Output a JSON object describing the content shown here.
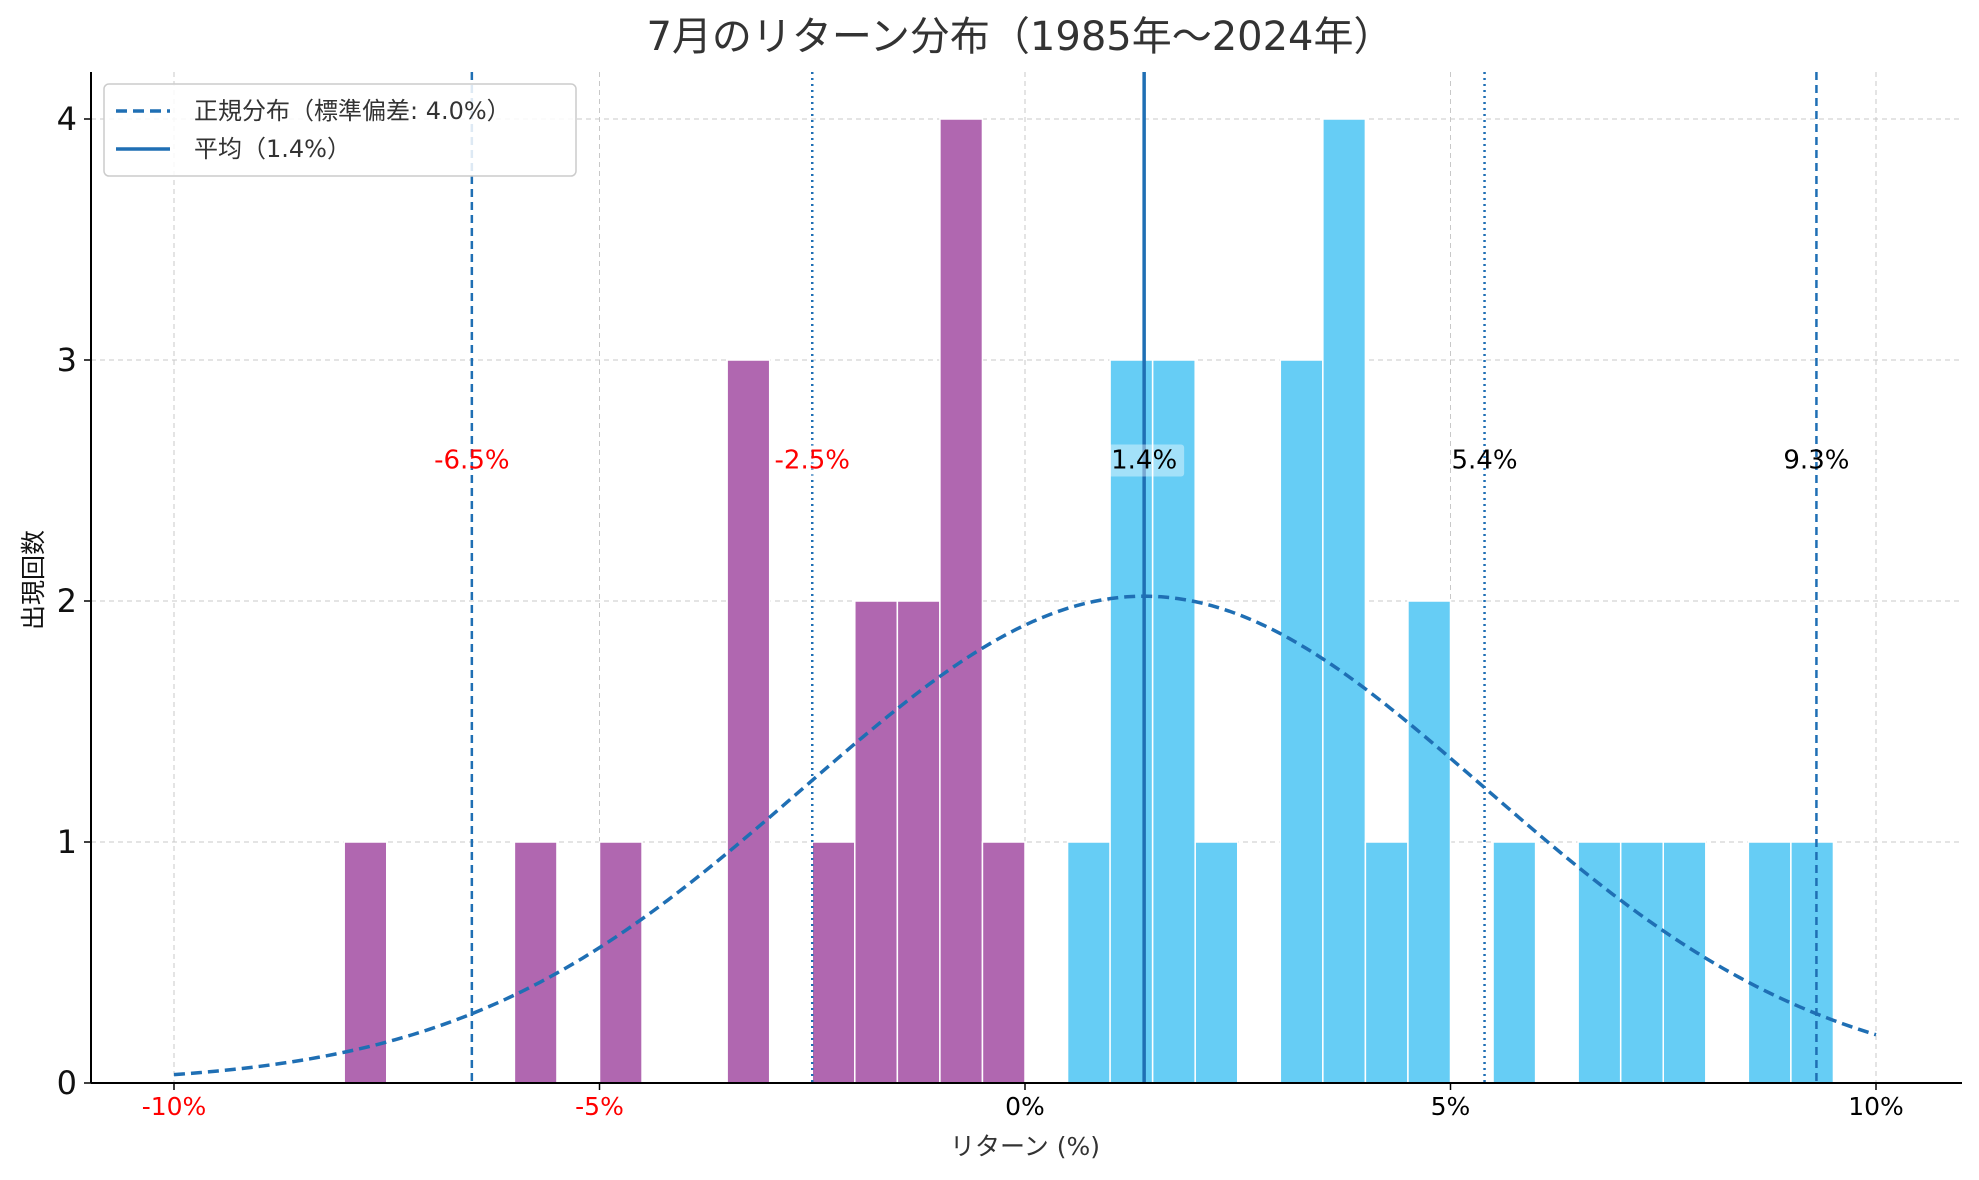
{
  "chart_data": {
    "type": "bar",
    "title": "7月のリターン分布（1985年～2024年）",
    "xlabel": "リターン (%)",
    "ylabel": "出現回数",
    "xlim": [
      -10.5,
      11
    ],
    "ylim": [
      0,
      4.2
    ],
    "grid": true,
    "legend_position": "top-left",
    "x_ticks": [
      {
        "value": -10,
        "label": "-10%",
        "color": "#ff0000"
      },
      {
        "value": -5,
        "label": "-5%",
        "color": "#ff0000"
      },
      {
        "value": 0,
        "label": "0%",
        "color": "#000000"
      },
      {
        "value": 5,
        "label": "5%",
        "color": "#000000"
      },
      {
        "value": 10,
        "label": "10%",
        "color": "#000000"
      }
    ],
    "y_ticks": [
      {
        "value": 0,
        "label": "0"
      },
      {
        "value": 1,
        "label": "1"
      },
      {
        "value": 2,
        "label": "2"
      },
      {
        "value": 3,
        "label": "3"
      },
      {
        "value": 4,
        "label": "4"
      }
    ],
    "bin_width": 0.5,
    "bars": [
      {
        "x0": -8.0,
        "count": 1,
        "group": "negative"
      },
      {
        "x0": -6.0,
        "count": 1,
        "group": "negative"
      },
      {
        "x0": -5.0,
        "count": 1,
        "group": "negative"
      },
      {
        "x0": -3.5,
        "count": 3,
        "group": "negative"
      },
      {
        "x0": -2.5,
        "count": 1,
        "group": "negative"
      },
      {
        "x0": -2.0,
        "count": 2,
        "group": "negative"
      },
      {
        "x0": -1.5,
        "count": 2,
        "group": "negative"
      },
      {
        "x0": -1.0,
        "count": 4,
        "group": "negative"
      },
      {
        "x0": -0.5,
        "count": 1,
        "group": "negative"
      },
      {
        "x0": 0.5,
        "count": 1,
        "group": "positive"
      },
      {
        "x0": 1.0,
        "count": 3,
        "group": "positive"
      },
      {
        "x0": 1.5,
        "count": 3,
        "group": "positive"
      },
      {
        "x0": 2.0,
        "count": 1,
        "group": "positive"
      },
      {
        "x0": 3.0,
        "count": 3,
        "group": "positive"
      },
      {
        "x0": 3.5,
        "count": 4,
        "group": "positive"
      },
      {
        "x0": 4.0,
        "count": 1,
        "group": "positive"
      },
      {
        "x0": 4.5,
        "count": 2,
        "group": "positive"
      },
      {
        "x0": 5.5,
        "count": 1,
        "group": "positive"
      },
      {
        "x0": 6.5,
        "count": 1,
        "group": "positive"
      },
      {
        "x0": 7.0,
        "count": 1,
        "group": "positive"
      },
      {
        "x0": 7.5,
        "count": 1,
        "group": "positive"
      },
      {
        "x0": 8.5,
        "count": 1,
        "group": "positive"
      },
      {
        "x0": 9.0,
        "count": 1,
        "group": "positive"
      }
    ],
    "colors": {
      "negative": "#b067b0",
      "positive": "#66cdf5",
      "line": "#1f6fb4",
      "axis": "#000000",
      "grid": "#c8c8c8",
      "red_label": "#ff0000"
    },
    "normal_curve": {
      "mean": 1.4,
      "std": 4.0,
      "peak": 2.02,
      "x_range": [
        -10,
        10
      ]
    },
    "reference_lines": [
      {
        "value": -6.5,
        "label": "-6.5%",
        "style": "dashed",
        "label_color": "#ff0000",
        "label_box": false
      },
      {
        "value": -2.5,
        "label": "-2.5%",
        "style": "dotted",
        "label_color": "#ff0000",
        "label_box": true
      },
      {
        "value": 1.4,
        "label": "1.4%",
        "style": "solid",
        "label_color": "#000000",
        "label_box": true
      },
      {
        "value": 5.4,
        "label": "5.4%",
        "style": "dotted",
        "label_color": "#000000",
        "label_box": false
      },
      {
        "value": 9.3,
        "label": "9.3%",
        "style": "dashed",
        "label_color": "#000000",
        "label_box": false
      }
    ],
    "annotation_y": 2.55,
    "legend": [
      {
        "label": "正規分布（標準偏差: 4.0%）",
        "style": "dashed"
      },
      {
        "label": "平均（1.4%）",
        "style": "solid"
      }
    ]
  }
}
